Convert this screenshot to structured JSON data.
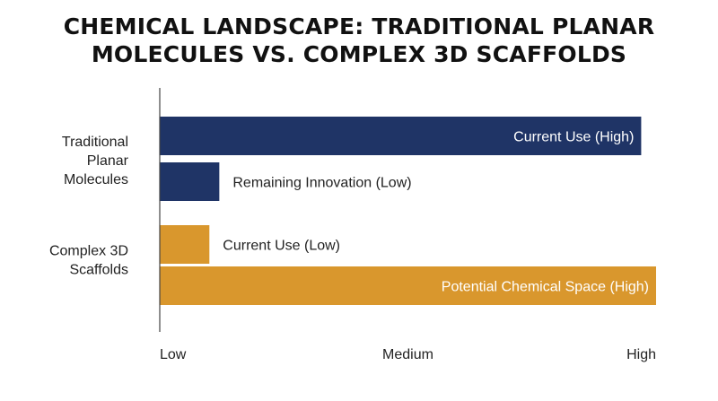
{
  "chart_data": {
    "type": "bar",
    "orientation": "horizontal",
    "title_lines": [
      "CHEMICAL LANDSCAPE: TRADITIONAL PLANAR",
      "MOLECULES VS. COMPLEX 3D SCAFFOLDS"
    ],
    "x_ticks": [
      "Low",
      "Medium",
      "High"
    ],
    "xlim": [
      0,
      1
    ],
    "grid": false,
    "categories": [
      {
        "name": "Traditional Planar Molecules",
        "lines": [
          "Traditional",
          "Planar",
          "Molecules"
        ]
      },
      {
        "name": "Complex 3D Scaffolds",
        "lines": [
          "Complex 3D",
          "Scaffolds"
        ]
      }
    ],
    "bars": [
      {
        "category": 0,
        "value": 0.97,
        "label": "Current Use (High)",
        "color": "#1f3466",
        "label_inside": true
      },
      {
        "category": 0,
        "value": 0.12,
        "label": "Remaining Innovation (Low)",
        "color": "#1f3466",
        "label_inside": false
      },
      {
        "category": 1,
        "value": 0.1,
        "label": "Current Use (Low)",
        "color": "#d9972d",
        "label_inside": false
      },
      {
        "category": 1,
        "value": 1.0,
        "label": "Potential Chemical Space (High)",
        "color": "#d9972d",
        "label_inside": true
      }
    ]
  }
}
